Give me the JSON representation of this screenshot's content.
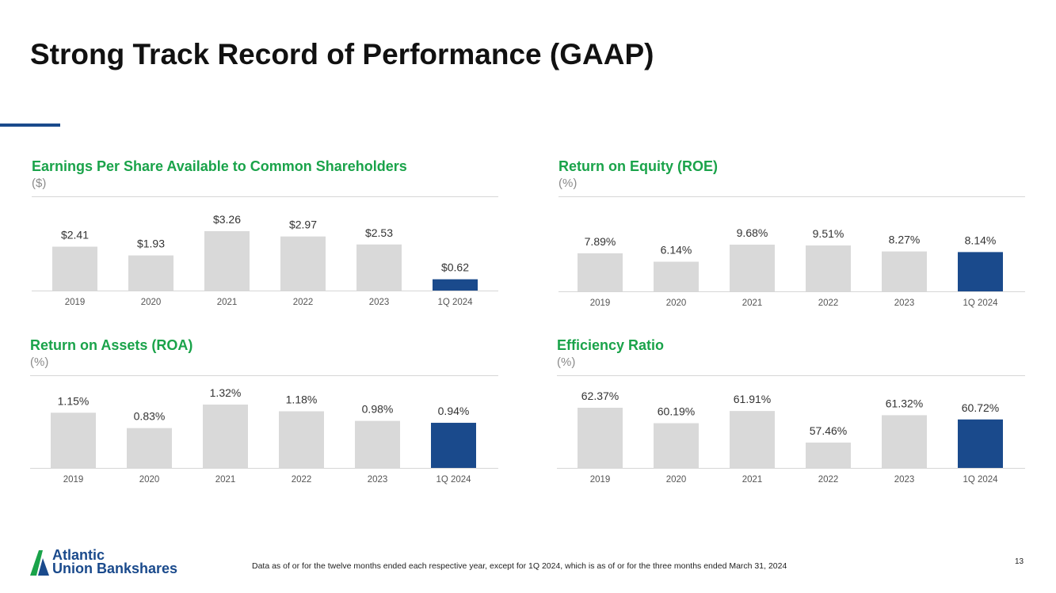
{
  "title": "Strong Track Record of Performance (GAAP)",
  "colors": {
    "accent": "#1a4a8c",
    "bar_grey": "#d9d9d9",
    "bar_highlight": "#1a4a8c",
    "subtitle_green": "#1aa34a"
  },
  "chart_data": [
    {
      "type": "bar",
      "title": "Earnings Per Share Available to Common Shareholders",
      "unit": "($)",
      "categories": [
        "2019",
        "2020",
        "2021",
        "2022",
        "2023",
        "1Q 2024"
      ],
      "values": [
        2.41,
        1.93,
        3.26,
        2.97,
        2.53,
        0.62
      ],
      "value_labels": [
        "$2.41",
        "$1.93",
        "$3.26",
        "$2.97",
        "$2.53",
        "$0.62"
      ],
      "highlight_index": 5,
      "ylim": [
        0,
        3.26
      ]
    },
    {
      "type": "bar",
      "title": "Return on Equity (ROE)",
      "unit": "(%)",
      "categories": [
        "2019",
        "2020",
        "2021",
        "2022",
        "2023",
        "1Q 2024"
      ],
      "values": [
        7.89,
        6.14,
        9.68,
        9.51,
        8.27,
        8.14
      ],
      "value_labels": [
        "7.89%",
        "6.14%",
        "9.68%",
        "9.51%",
        "8.27%",
        "8.14%"
      ],
      "highlight_index": 5,
      "ylim": [
        0,
        9.68
      ]
    },
    {
      "type": "bar",
      "title": "Return on Assets (ROA)",
      "unit": "(%)",
      "categories": [
        "2019",
        "2020",
        "2021",
        "2022",
        "2023",
        "1Q 2024"
      ],
      "values": [
        1.15,
        0.83,
        1.32,
        1.18,
        0.98,
        0.94
      ],
      "value_labels": [
        "1.15%",
        "0.83%",
        "1.32%",
        "1.18%",
        "0.98%",
        "0.94%"
      ],
      "highlight_index": 5,
      "ylim": [
        0,
        1.32
      ]
    },
    {
      "type": "bar",
      "title": "Efficiency Ratio",
      "unit": "(%)",
      "categories": [
        "2019",
        "2020",
        "2021",
        "2022",
        "2023",
        "1Q 2024"
      ],
      "values": [
        62.37,
        60.19,
        61.91,
        57.46,
        61.32,
        60.72
      ],
      "value_labels": [
        "62.37%",
        "60.19%",
        "61.91%",
        "57.46%",
        "61.32%",
        "60.72%"
      ],
      "highlight_index": 5,
      "ylim": [
        55,
        62.37
      ]
    }
  ],
  "footnote": "Data as of or for the twelve months ended each respective year, except for 1Q 2024, which is as of or for the three months ended March 31, 2024",
  "page_number": "13",
  "logo": {
    "line1": "Atlantic",
    "line2": "Union Bankshares"
  }
}
